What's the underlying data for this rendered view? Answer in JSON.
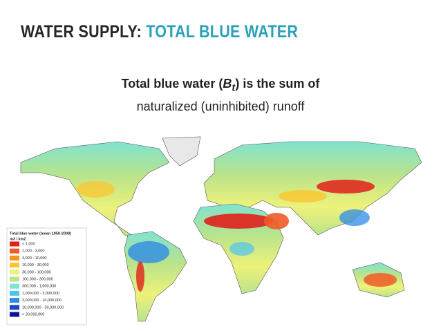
{
  "header": {
    "title_part1": "WATER SUPPLY:",
    "title_part2": "TOTAL BLUE WATER"
  },
  "subtitle": {
    "line1_before": "Total blue water (",
    "symbol": "B",
    "symbol_sub": "t",
    "line1_after": ") is the sum of",
    "line2": "naturalized (uninhibited) runoff"
  },
  "legend": {
    "title": "Total blue water (mean 1950-2008)",
    "unit": "m3 / km2",
    "items": [
      {
        "label": "< 1,000",
        "color": "#e0201b"
      },
      {
        "label": "1,000 - 3,000",
        "color": "#f05a28"
      },
      {
        "label": "3,000 - 10,000",
        "color": "#f7941d"
      },
      {
        "label": "10,000 - 30,000",
        "color": "#fbc530"
      },
      {
        "label": "30,000 - 100,000",
        "color": "#eef27a"
      },
      {
        "label": "100,000 - 300,000",
        "color": "#b9e38c"
      },
      {
        "label": "300,000 - 1,000,000",
        "color": "#7fe3d0"
      },
      {
        "label": "1,000,000 - 3,000,000",
        "color": "#4fc3f0"
      },
      {
        "label": "3,000,000 - 10,000,000",
        "color": "#2f8be6"
      },
      {
        "label": "10,000,000 - 30,000,000",
        "color": "#2147c9"
      },
      {
        "label": "> 30,000,000",
        "color": "#10109a"
      }
    ]
  }
}
